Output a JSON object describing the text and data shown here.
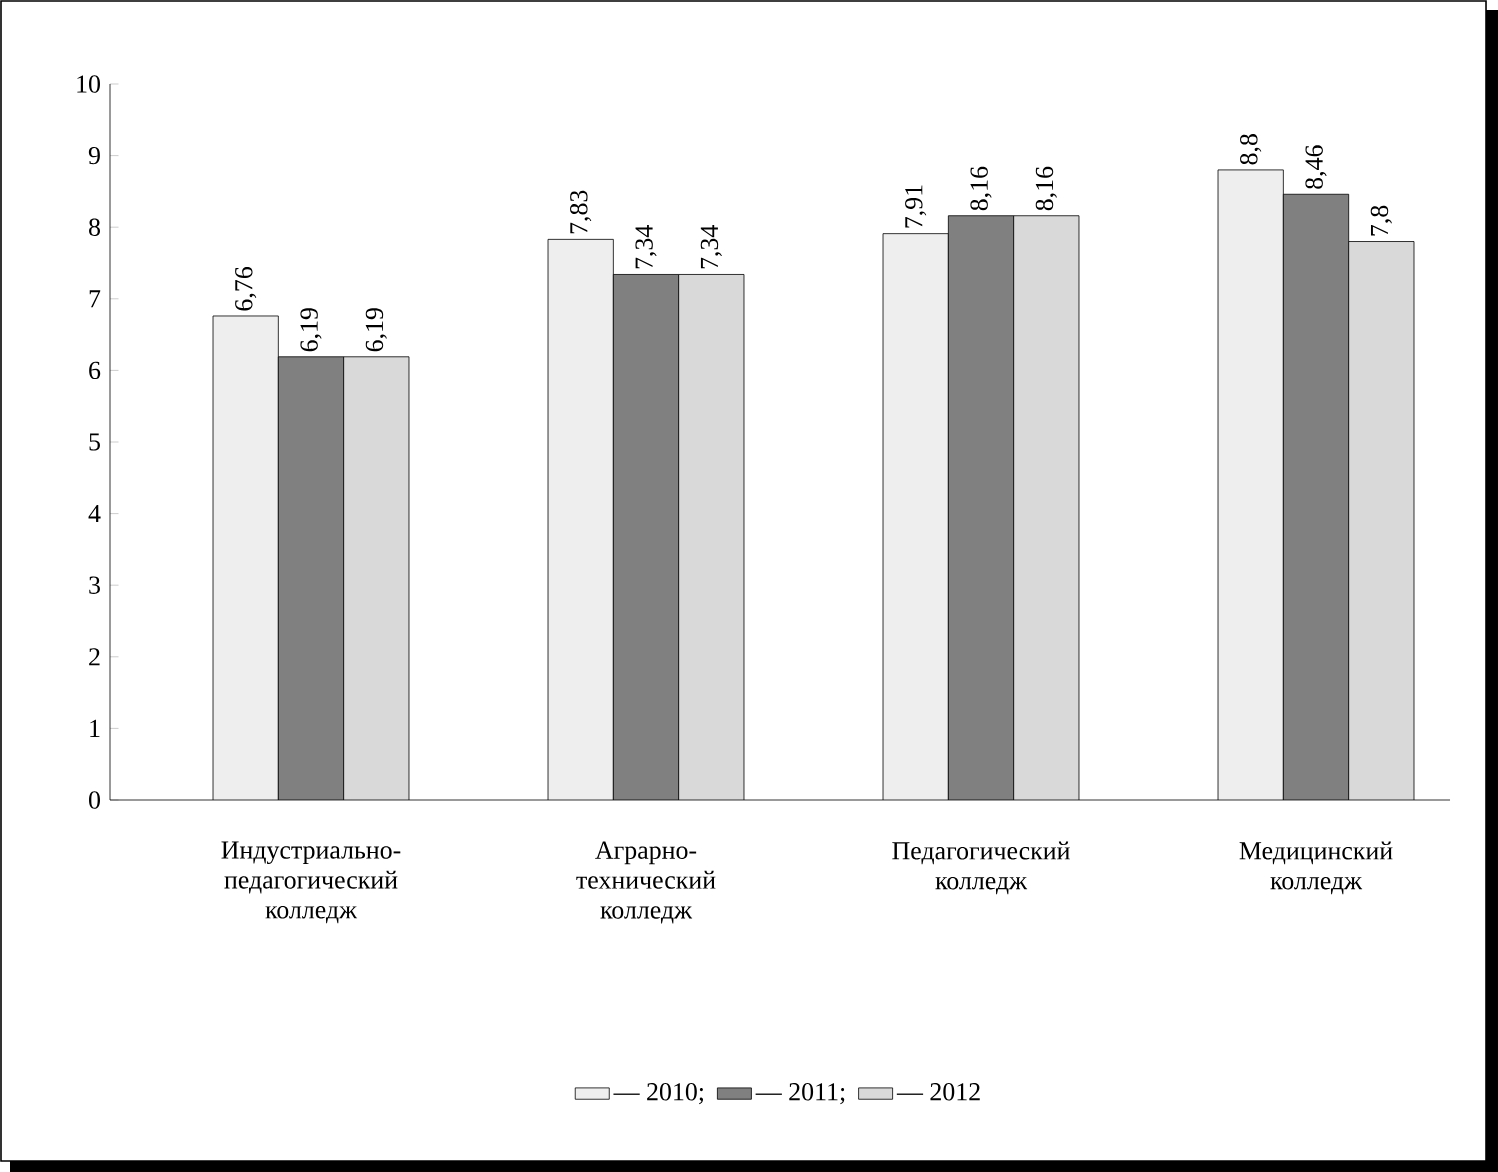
{
  "chart_data": {
    "type": "bar",
    "categories": [
      "Индустриально-педагогический колледж",
      "Аграрно-технический колледж",
      "Педагогический колледж",
      "Медицинский колледж"
    ],
    "series": [
      {
        "name": "— 2010;",
        "color": "#eeeeee",
        "values": [
          6.76,
          7.83,
          7.91,
          8.8
        ],
        "value_labels": [
          "6,76",
          "7,83",
          "7,91",
          "8,8"
        ]
      },
      {
        "name": "— 2011;",
        "color": "#808080",
        "values": [
          6.19,
          7.34,
          8.16,
          8.46
        ],
        "value_labels": [
          "6,19",
          "7,34",
          "8,16",
          "8,46"
        ]
      },
      {
        "name": "— 2012",
        "color": "#d9d9d9",
        "values": [
          6.19,
          7.34,
          8.16,
          7.8
        ],
        "value_labels": [
          "6,19",
          "7,34",
          "8,16",
          "7,8"
        ]
      }
    ],
    "ylim": [
      0,
      10
    ],
    "yticks": [
      0,
      1,
      2,
      3,
      4,
      5,
      6,
      7,
      8,
      9,
      10
    ],
    "legend": "bottom"
  }
}
